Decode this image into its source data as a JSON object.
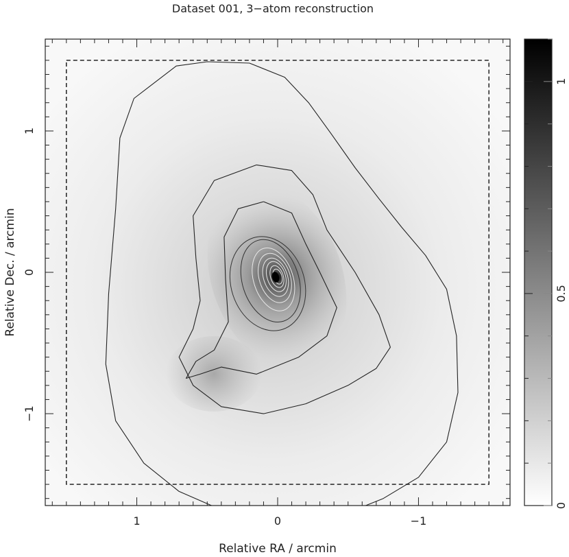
{
  "title": "Dataset 001, 3−atom reconstruction",
  "chart_data": {
    "type": "heatmap",
    "title": "Dataset 001, 3−atom reconstruction",
    "xlabel": "Relative RA / arcmin",
    "ylabel": "Relative Dec. / arcmin",
    "xlim": [
      1.65,
      -1.65
    ],
    "ylim": [
      -1.65,
      1.65
    ],
    "x_ticks": [
      {
        "value": 1,
        "label": "1"
      },
      {
        "value": 0,
        "label": "0"
      },
      {
        "value": -1,
        "label": "−1"
      }
    ],
    "y_ticks": [
      {
        "value": 1,
        "label": "1"
      },
      {
        "value": 0,
        "label": "0"
      },
      {
        "value": -1,
        "label": "−1"
      }
    ],
    "x_minor_step": 0.1,
    "y_minor_step": 0.1,
    "colorbar": {
      "min": 0,
      "max": 1.1,
      "ticks": [
        {
          "value": 0,
          "label": "0"
        },
        {
          "value": 0.5,
          "label": "0.5"
        },
        {
          "value": 1,
          "label": "1"
        }
      ],
      "minor_step": 0.1,
      "colormap": "grayscale-inverted"
    },
    "dashed_box": {
      "x": [
        1.5,
        -1.5
      ],
      "y": [
        -1.5,
        1.5
      ]
    },
    "sources": [
      {
        "name": "peak",
        "x": 0,
        "y": -0.03,
        "intensity": 1.1
      },
      {
        "name": "secondary",
        "x": 0.45,
        "y": -0.72,
        "intensity": 0.3
      }
    ],
    "contours": [
      {
        "label": "outer",
        "points": [
          [
            0.5,
            1.49
          ],
          [
            0.2,
            1.48
          ],
          [
            -0.05,
            1.38
          ],
          [
            -0.22,
            1.2
          ],
          [
            -0.38,
            0.98
          ],
          [
            -0.55,
            0.74
          ],
          [
            -0.72,
            0.52
          ],
          [
            -0.88,
            0.32
          ],
          [
            -1.05,
            0.12
          ],
          [
            -1.2,
            -0.12
          ],
          [
            -1.27,
            -0.45
          ],
          [
            -1.28,
            -0.85
          ],
          [
            -1.2,
            -1.2
          ],
          [
            -1.0,
            -1.45
          ],
          [
            -0.75,
            -1.6
          ],
          [
            -0.55,
            -1.68
          ],
          [
            0.4,
            -1.68
          ],
          [
            0.7,
            -1.55
          ],
          [
            0.95,
            -1.35
          ],
          [
            1.15,
            -1.05
          ],
          [
            1.22,
            -0.65
          ],
          [
            1.2,
            -0.15
          ],
          [
            1.15,
            0.45
          ],
          [
            1.12,
            0.95
          ],
          [
            1.02,
            1.23
          ],
          [
            0.72,
            1.46
          ],
          [
            0.5,
            1.49
          ]
        ],
        "closed": false
      },
      {
        "label": "second",
        "points": [
          [
            0.15,
            0.76
          ],
          [
            -0.1,
            0.72
          ],
          [
            -0.25,
            0.55
          ],
          [
            -0.35,
            0.3
          ],
          [
            -0.55,
            0.0
          ],
          [
            -0.72,
            -0.3
          ],
          [
            -0.8,
            -0.53
          ],
          [
            -0.7,
            -0.68
          ],
          [
            -0.5,
            -0.8
          ],
          [
            -0.2,
            -0.93
          ],
          [
            0.1,
            -1.0
          ],
          [
            0.4,
            -0.95
          ],
          [
            0.6,
            -0.8
          ],
          [
            0.7,
            -0.6
          ],
          [
            0.6,
            -0.4
          ],
          [
            0.55,
            -0.2
          ],
          [
            0.58,
            0.1
          ],
          [
            0.6,
            0.4
          ],
          [
            0.45,
            0.65
          ],
          [
            0.15,
            0.76
          ]
        ]
      },
      {
        "label": "third",
        "points": [
          [
            0.1,
            0.5
          ],
          [
            -0.1,
            0.42
          ],
          [
            -0.2,
            0.2
          ],
          [
            -0.3,
            0.0
          ],
          [
            -0.42,
            -0.25
          ],
          [
            -0.35,
            -0.45
          ],
          [
            -0.15,
            -0.6
          ],
          [
            0.15,
            -0.72
          ],
          [
            0.4,
            -0.67
          ],
          [
            0.55,
            -0.72
          ],
          [
            0.65,
            -0.75
          ],
          [
            0.58,
            -0.63
          ],
          [
            0.45,
            -0.55
          ],
          [
            0.35,
            -0.35
          ],
          [
            0.37,
            -0.05
          ],
          [
            0.38,
            0.25
          ],
          [
            0.28,
            0.45
          ],
          [
            0.1,
            0.5
          ]
        ]
      }
    ],
    "inner_contours": [
      {
        "rx": 0.26,
        "ry": 0.34,
        "cx": 0.07,
        "cy": -0.08
      },
      {
        "rx": 0.2,
        "ry": 0.3,
        "cx": 0.05,
        "cy": -0.06
      },
      {
        "rx": 0.14,
        "ry": 0.23,
        "cx": 0.03,
        "cy": -0.05
      },
      {
        "rx": 0.11,
        "ry": 0.18,
        "cx": 0.02,
        "cy": -0.04
      },
      {
        "rx": 0.085,
        "ry": 0.14,
        "cx": 0.015,
        "cy": -0.035
      },
      {
        "rx": 0.065,
        "ry": 0.11,
        "cx": 0.01,
        "cy": -0.03
      },
      {
        "rx": 0.045,
        "ry": 0.08,
        "cx": 0.005,
        "cy": -0.03
      },
      {
        "rx": 0.03,
        "ry": 0.055,
        "cx": 0.0,
        "cy": -0.03
      }
    ]
  }
}
